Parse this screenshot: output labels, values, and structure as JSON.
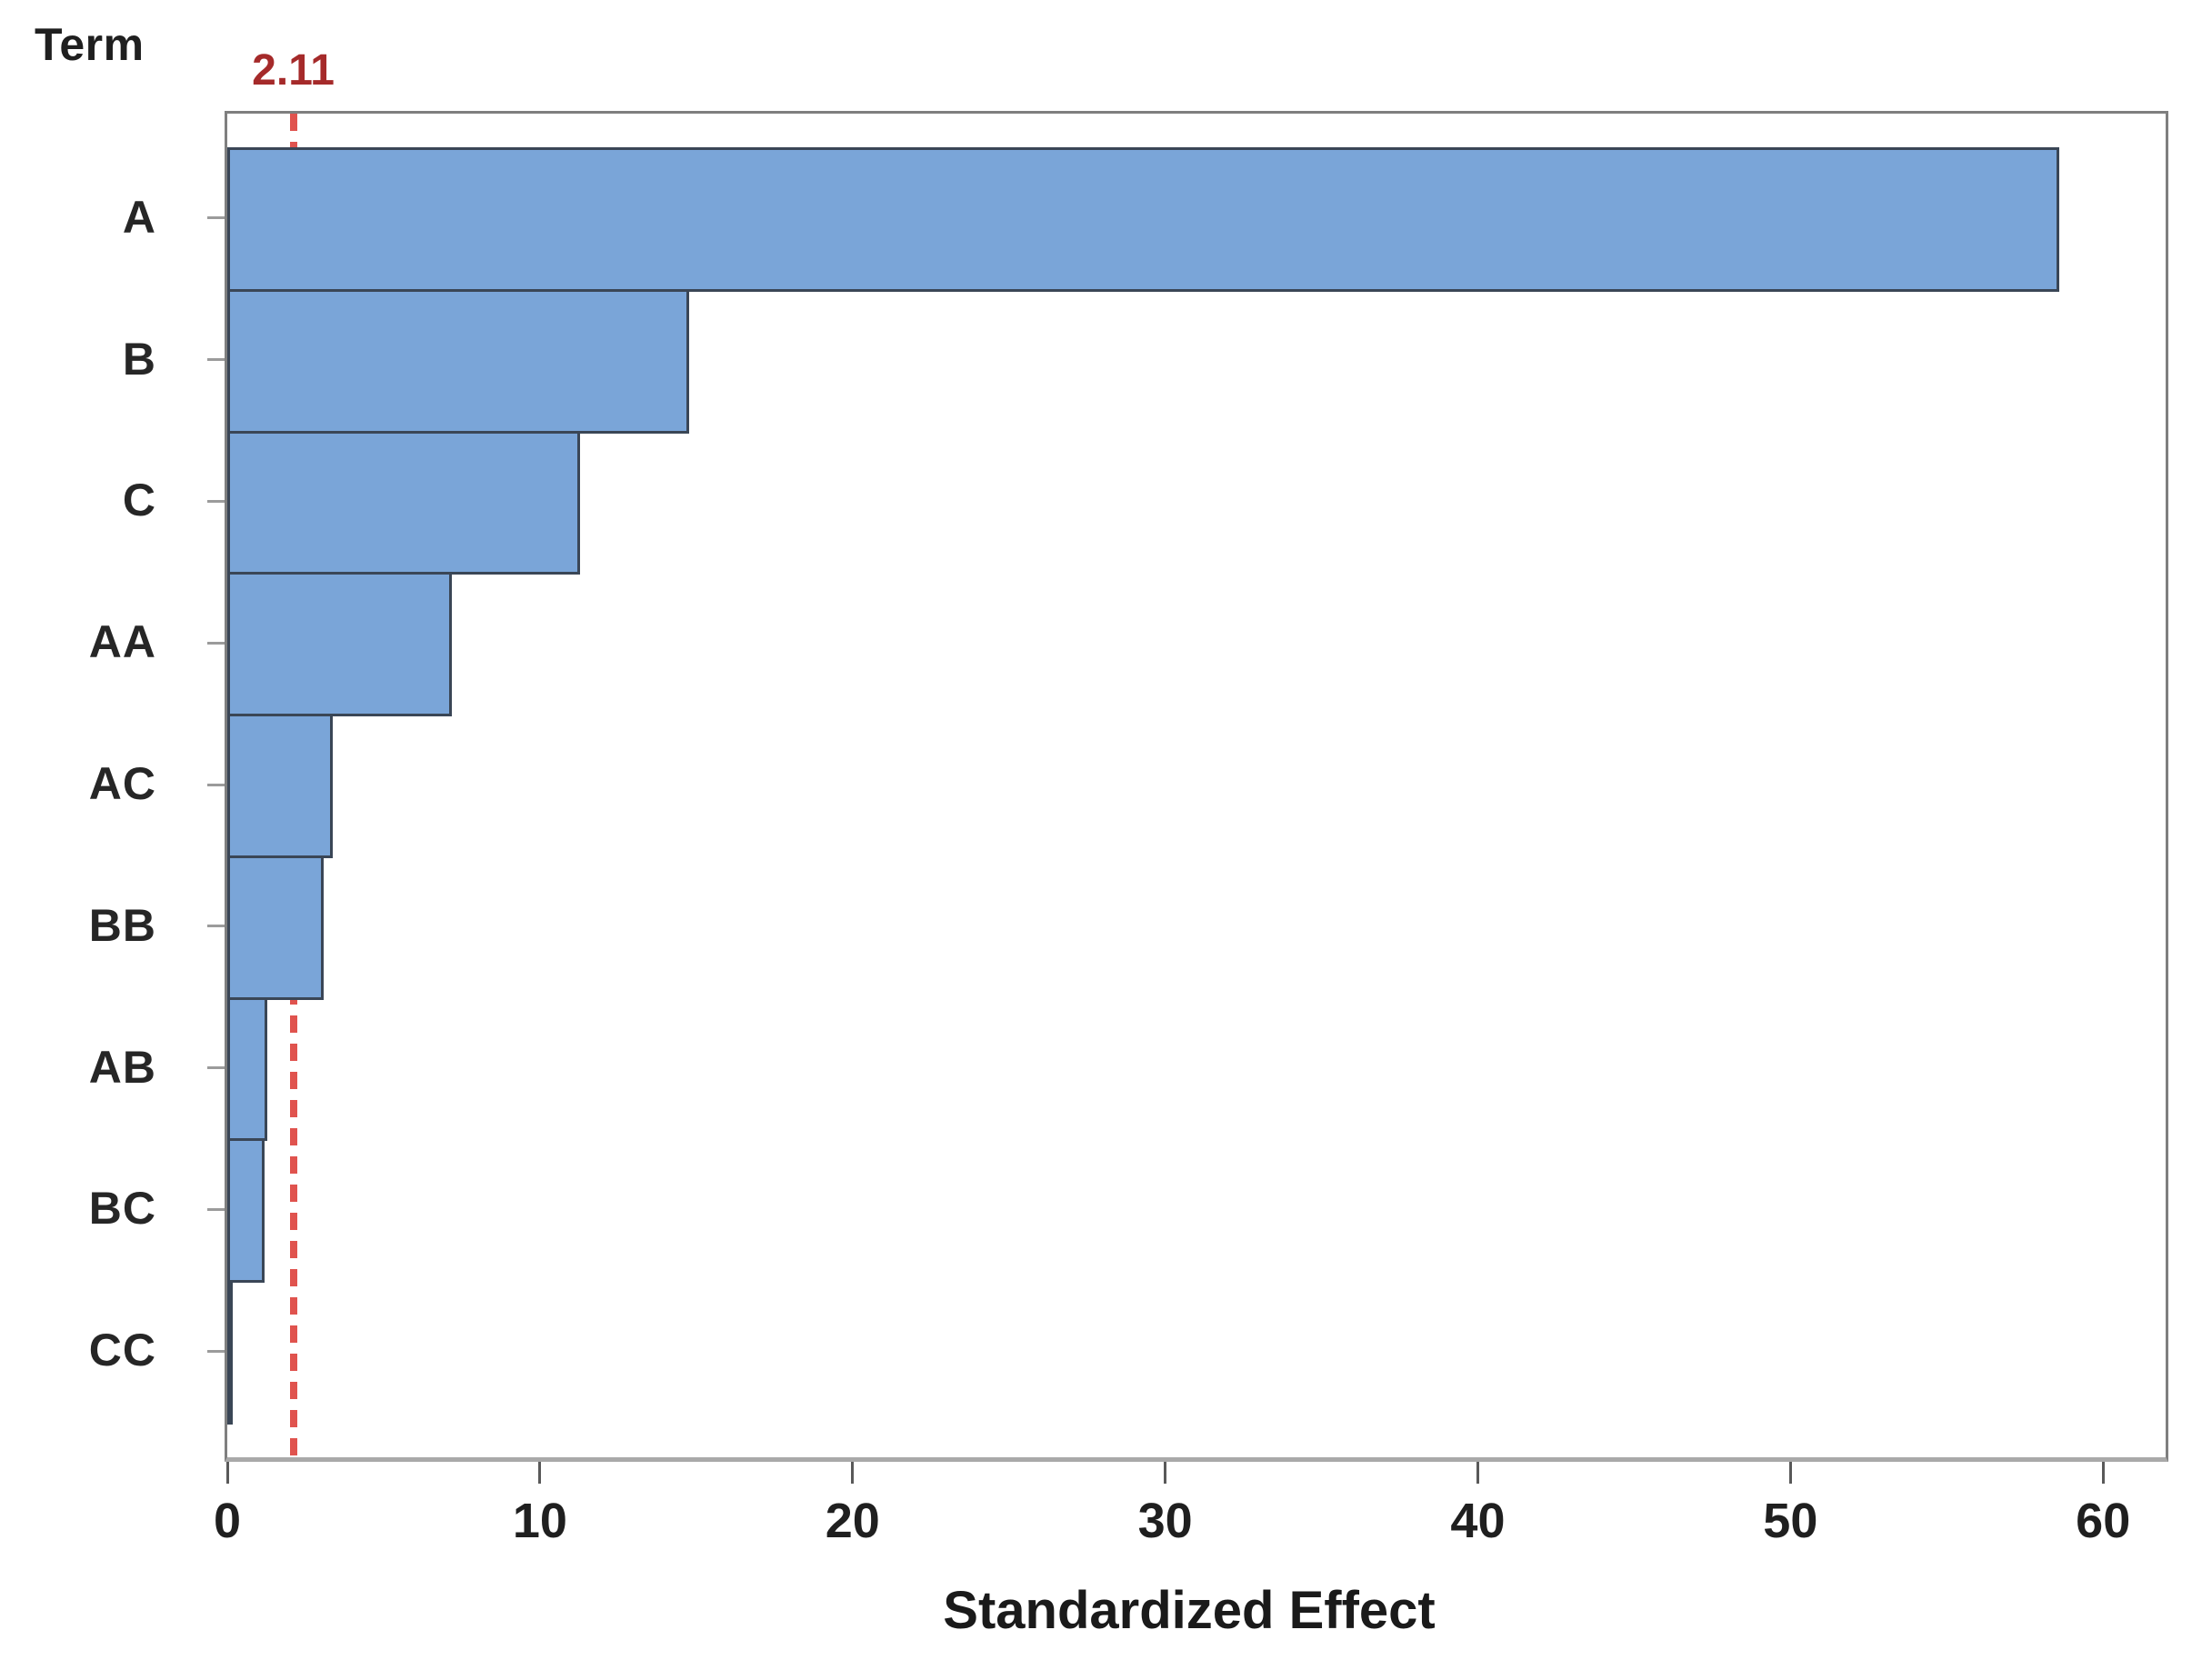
{
  "chart_data": {
    "type": "bar",
    "orientation": "horizontal",
    "y_axis_title": "Term",
    "xlabel": "Standardized Effect",
    "categories": [
      "A",
      "B",
      "C",
      "AA",
      "AC",
      "BB",
      "AB",
      "BC",
      "CC"
    ],
    "values": [
      58.5,
      14.7,
      11.2,
      7.1,
      3.3,
      3.0,
      1.2,
      1.1,
      0.1
    ],
    "x_ticks": [
      0,
      10,
      20,
      30,
      40,
      50,
      60
    ],
    "xlim": [
      0,
      62
    ],
    "grid": false,
    "legend": "none",
    "reference_line": {
      "value": 2.11,
      "label": "2.11",
      "style": "dashed"
    },
    "colors": {
      "bar_fill": "#7aa5d8",
      "bar_border": "#3a4656",
      "reference_line": "#e0534e",
      "reference_label": "#a52a2a",
      "plot_border": "#7f7f7f",
      "axis_line": "#a9a9a9",
      "x_tick": "#595959",
      "y_tick": "#9b9b9b",
      "text": "#1f1f1f"
    }
  }
}
